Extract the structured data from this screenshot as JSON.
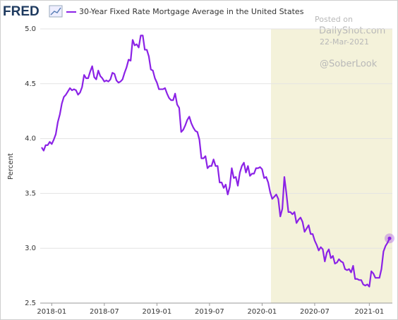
{
  "chart_data": {
    "type": "line",
    "logo": "FRED",
    "y_label": "Percent",
    "annotations": [
      "Posted on",
      "DailyShot.com",
      "22-Mar-2021",
      "@SoberLook"
    ],
    "categories": [
      null,
      null,
      null,
      null,
      null,
      "2018-01",
      null,
      null,
      null,
      null,
      null,
      null,
      null,
      null,
      null,
      null,
      null,
      null,
      null,
      null,
      null,
      null,
      null,
      null,
      null,
      null,
      null,
      null,
      null,
      null,
      null,
      "2018-07",
      null,
      null,
      null,
      null,
      null,
      null,
      null,
      null,
      null,
      null,
      null,
      null,
      null,
      null,
      null,
      null,
      null,
      null,
      null,
      null,
      null,
      null,
      null,
      null,
      null,
      "2019-01",
      null,
      null,
      null,
      null,
      null,
      null,
      null,
      null,
      null,
      null,
      null,
      null,
      null,
      null,
      null,
      null,
      null,
      null,
      null,
      null,
      null,
      null,
      null,
      null,
      null,
      "2019-07",
      null,
      null,
      null,
      null,
      null,
      null,
      null,
      null,
      null,
      null,
      null,
      null,
      null,
      null,
      null,
      null,
      null,
      null,
      null,
      null,
      null,
      null,
      null,
      null,
      null,
      "2020-01",
      null,
      null,
      null,
      null,
      null,
      null,
      null,
      null,
      null,
      null,
      null,
      null,
      null,
      null,
      null,
      null,
      null,
      null,
      null,
      null,
      null,
      null,
      null,
      null,
      null,
      "2020-07",
      null,
      null,
      null,
      null,
      null,
      null,
      null,
      null,
      null,
      null,
      null,
      null,
      null,
      null,
      null,
      null,
      null,
      null,
      null,
      null,
      null,
      null,
      null,
      null,
      null,
      null,
      "2021-01",
      null,
      null,
      null,
      null,
      null,
      null,
      null,
      null,
      null,
      null
    ],
    "series": [
      {
        "name": "30-Year Fixed Rate Mortgage Average in the United States",
        "color": "#8b22e6",
        "values": [
          3.92,
          3.89,
          3.94,
          3.94,
          3.97,
          3.95,
          3.99,
          4.04,
          4.15,
          4.22,
          4.32,
          4.38,
          4.4,
          4.43,
          4.46,
          4.44,
          4.45,
          4.44,
          4.4,
          4.42,
          4.47,
          4.58,
          4.55,
          4.55,
          4.61,
          4.66,
          4.56,
          4.54,
          4.62,
          4.57,
          4.55,
          4.52,
          4.53,
          4.52,
          4.54,
          4.6,
          4.59,
          4.53,
          4.51,
          4.52,
          4.54,
          4.6,
          4.65,
          4.72,
          4.71,
          4.9,
          4.85,
          4.86,
          4.83,
          4.94,
          4.94,
          4.81,
          4.81,
          4.75,
          4.63,
          4.62,
          4.55,
          4.51,
          4.45,
          4.45,
          4.45,
          4.46,
          4.41,
          4.37,
          4.35,
          4.35,
          4.41,
          4.31,
          4.28,
          4.06,
          4.08,
          4.12,
          4.17,
          4.2,
          4.14,
          4.1,
          4.07,
          4.06,
          3.99,
          3.82,
          3.82,
          3.84,
          3.73,
          3.75,
          3.75,
          3.81,
          3.75,
          3.75,
          3.6,
          3.6,
          3.55,
          3.58,
          3.49,
          3.56,
          3.73,
          3.64,
          3.65,
          3.57,
          3.69,
          3.75,
          3.78,
          3.69,
          3.75,
          3.66,
          3.68,
          3.68,
          3.73,
          3.73,
          3.74,
          3.72,
          3.64,
          3.65,
          3.6,
          3.51,
          3.45,
          3.47,
          3.49,
          3.45,
          3.29,
          3.36,
          3.65,
          3.5,
          3.33,
          3.33,
          3.31,
          3.33,
          3.23,
          3.26,
          3.28,
          3.24,
          3.15,
          3.18,
          3.21,
          3.13,
          3.13,
          3.07,
          3.03,
          2.98,
          3.01,
          2.99,
          2.88,
          2.96,
          2.99,
          2.91,
          2.93,
          2.86,
          2.87,
          2.9,
          2.88,
          2.87,
          2.81,
          2.8,
          2.81,
          2.78,
          2.84,
          2.72,
          2.72,
          2.71,
          2.71,
          2.67,
          2.66,
          2.67,
          2.65,
          2.79,
          2.77,
          2.73,
          2.73,
          2.73,
          2.81,
          2.97,
          3.02,
          3.05,
          3.09
        ]
      }
    ],
    "ylim": [
      2.5,
      5.0
    ],
    "yticks": [
      2.5,
      {
        "value": 3.0,
        "label": "3.0"
      },
      3.5,
      {
        "value": 4.0,
        "label": "4.0"
      },
      4.5,
      {
        "value": 5.0,
        "label": "5.0"
      }
    ],
    "grid": true
  }
}
